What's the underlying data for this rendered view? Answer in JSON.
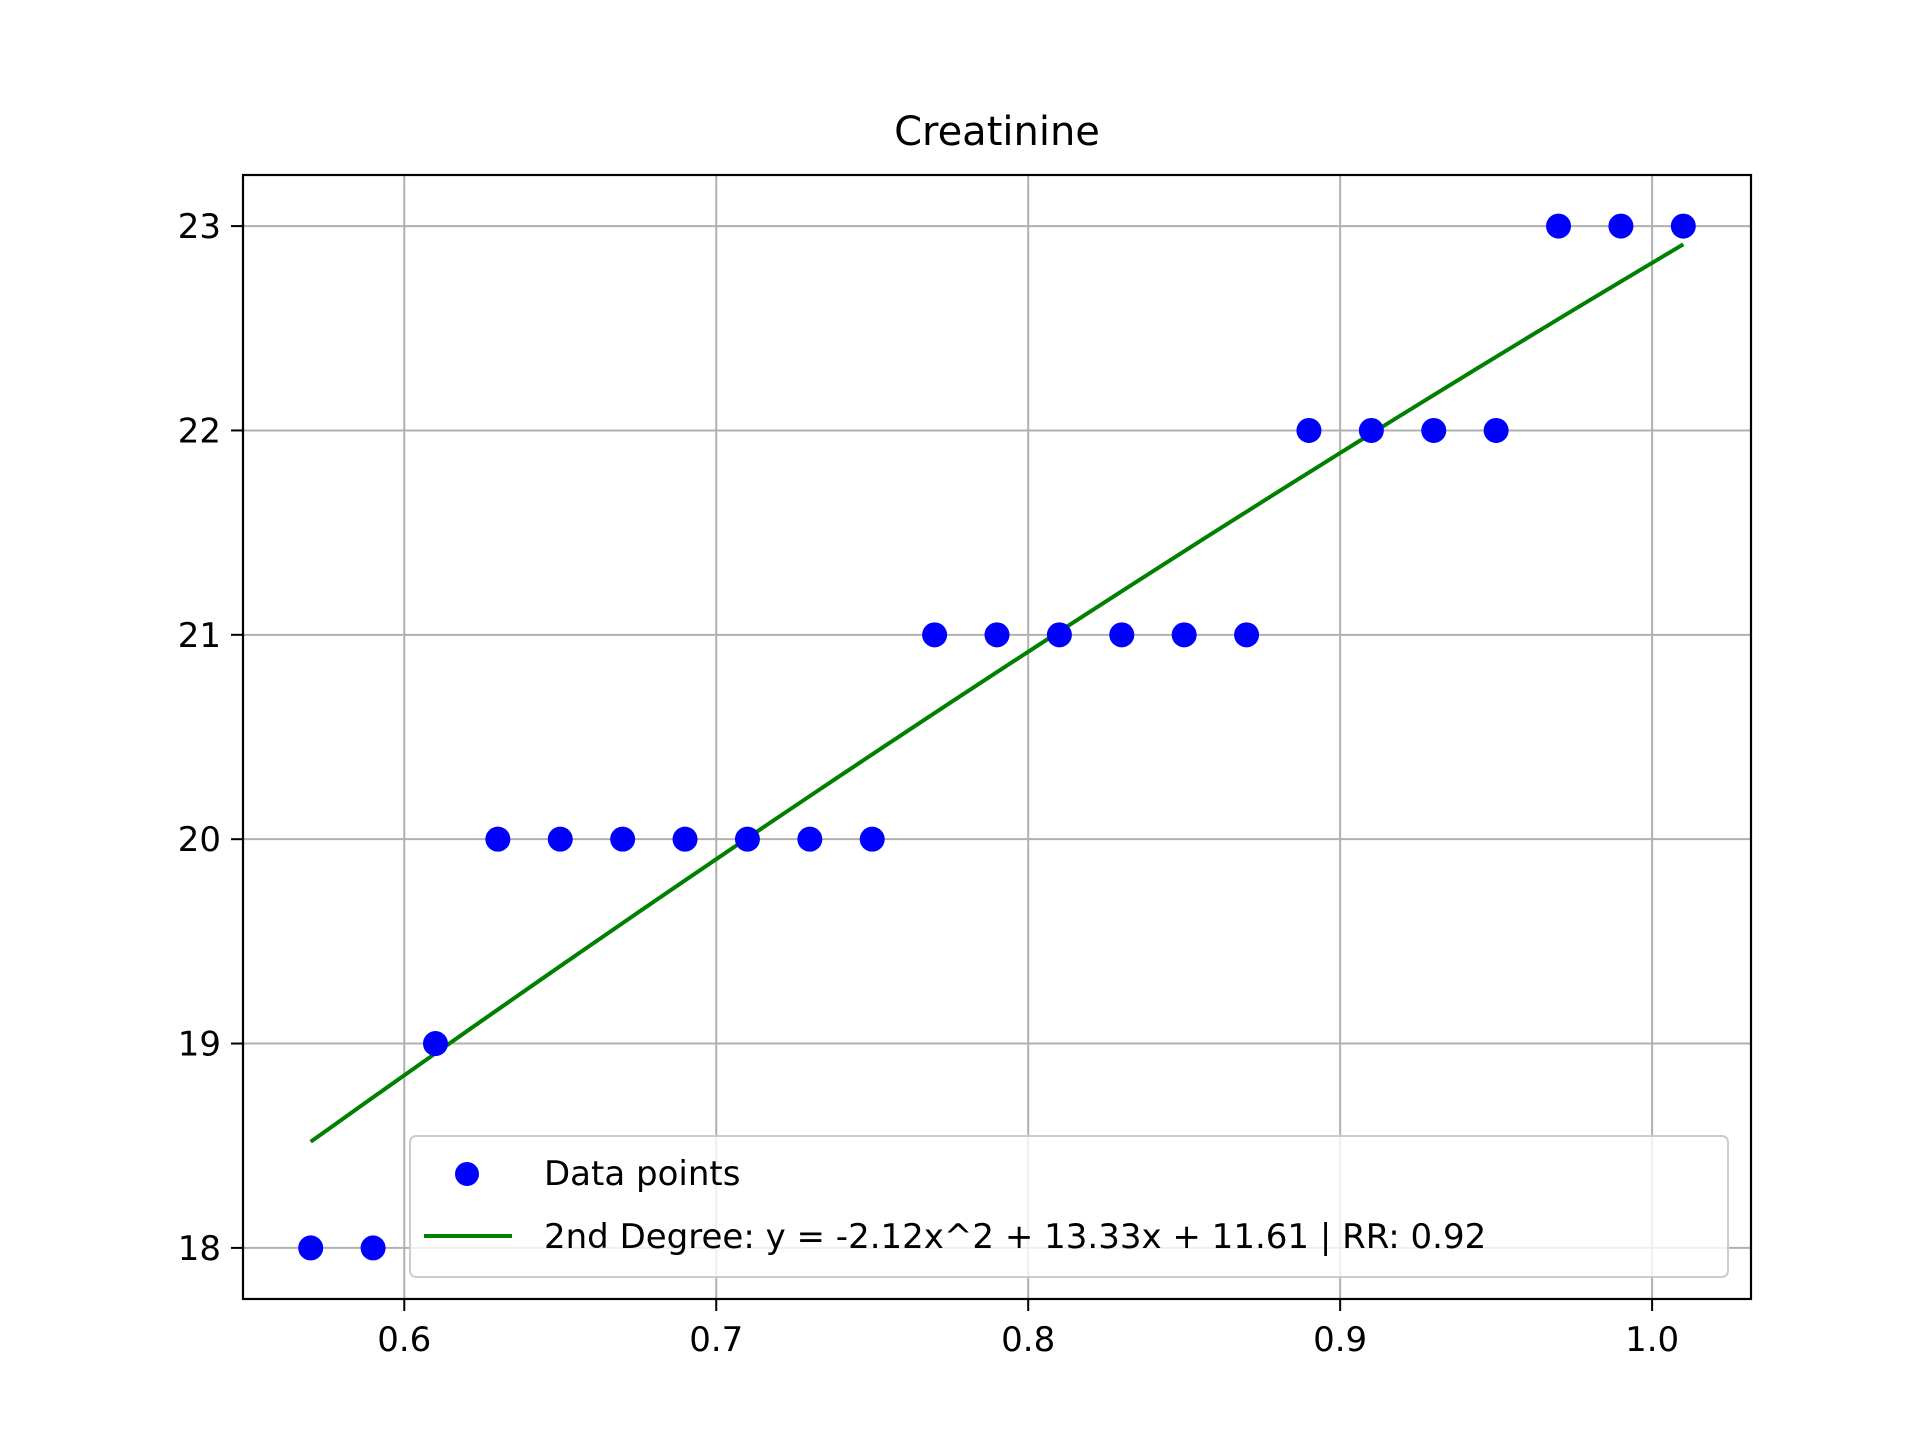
{
  "chart_data": {
    "type": "scatter",
    "title": "Creatinine",
    "xlabel": "",
    "ylabel": "",
    "xlim": [
      0.5483,
      1.0317
    ],
    "ylim": [
      17.75,
      23.25
    ],
    "xticks": [
      0.6,
      0.7,
      0.8,
      0.9,
      1.0
    ],
    "xtick_labels": [
      "0.6",
      "0.7",
      "0.8",
      "0.9",
      "1.0"
    ],
    "yticks": [
      18,
      19,
      20,
      21,
      22,
      23
    ],
    "ytick_labels": [
      "18",
      "19",
      "20",
      "21",
      "22",
      "23"
    ],
    "grid": true,
    "legend_position": "lower-right",
    "series": [
      {
        "name": "Data points",
        "kind": "scatter",
        "color": "#0000ff",
        "x": [
          0.57,
          0.59,
          0.61,
          0.63,
          0.65,
          0.67,
          0.69,
          0.71,
          0.73,
          0.75,
          0.77,
          0.79,
          0.81,
          0.83,
          0.85,
          0.87,
          0.89,
          0.91,
          0.93,
          0.95,
          0.97,
          0.99,
          1.01
        ],
        "y": [
          18,
          18,
          19,
          20,
          20,
          20,
          20,
          20,
          20,
          20,
          21,
          21,
          21,
          21,
          21,
          21,
          22,
          22,
          22,
          22,
          23,
          23,
          23
        ]
      },
      {
        "name": "2nd Degree: y = -2.12x^2 + 13.33x + 11.61 | RR: 0.92",
        "kind": "line",
        "color": "#008000",
        "coefficients": [
          -2.12,
          13.33,
          11.61
        ],
        "x_range": [
          0.57,
          1.01
        ]
      }
    ]
  }
}
